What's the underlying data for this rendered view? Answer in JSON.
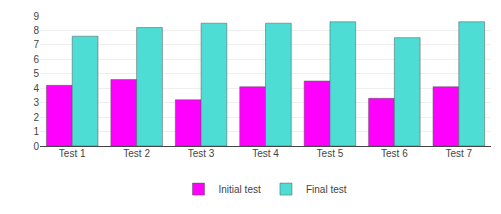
{
  "chart_data": {
    "type": "bar",
    "categories": [
      "Test 1",
      "Test 2",
      "Test 3",
      "Test 4",
      "Test 5",
      "Test 6",
      "Test 7"
    ],
    "series": [
      {
        "name": "Initial test",
        "color": "#FF00FF",
        "values": [
          4.2,
          4.6,
          3.2,
          4.1,
          4.5,
          3.3,
          4.1
        ]
      },
      {
        "name": "Final test",
        "color": "#4DDDD4",
        "values": [
          7.6,
          8.2,
          8.5,
          8.5,
          8.6,
          7.5,
          8.6
        ]
      }
    ],
    "ylim": [
      0,
      9
    ],
    "yticks": [
      0,
      1,
      2,
      3,
      4,
      5,
      6,
      7,
      8,
      9
    ],
    "grid": true,
    "legend": "bottom"
  }
}
